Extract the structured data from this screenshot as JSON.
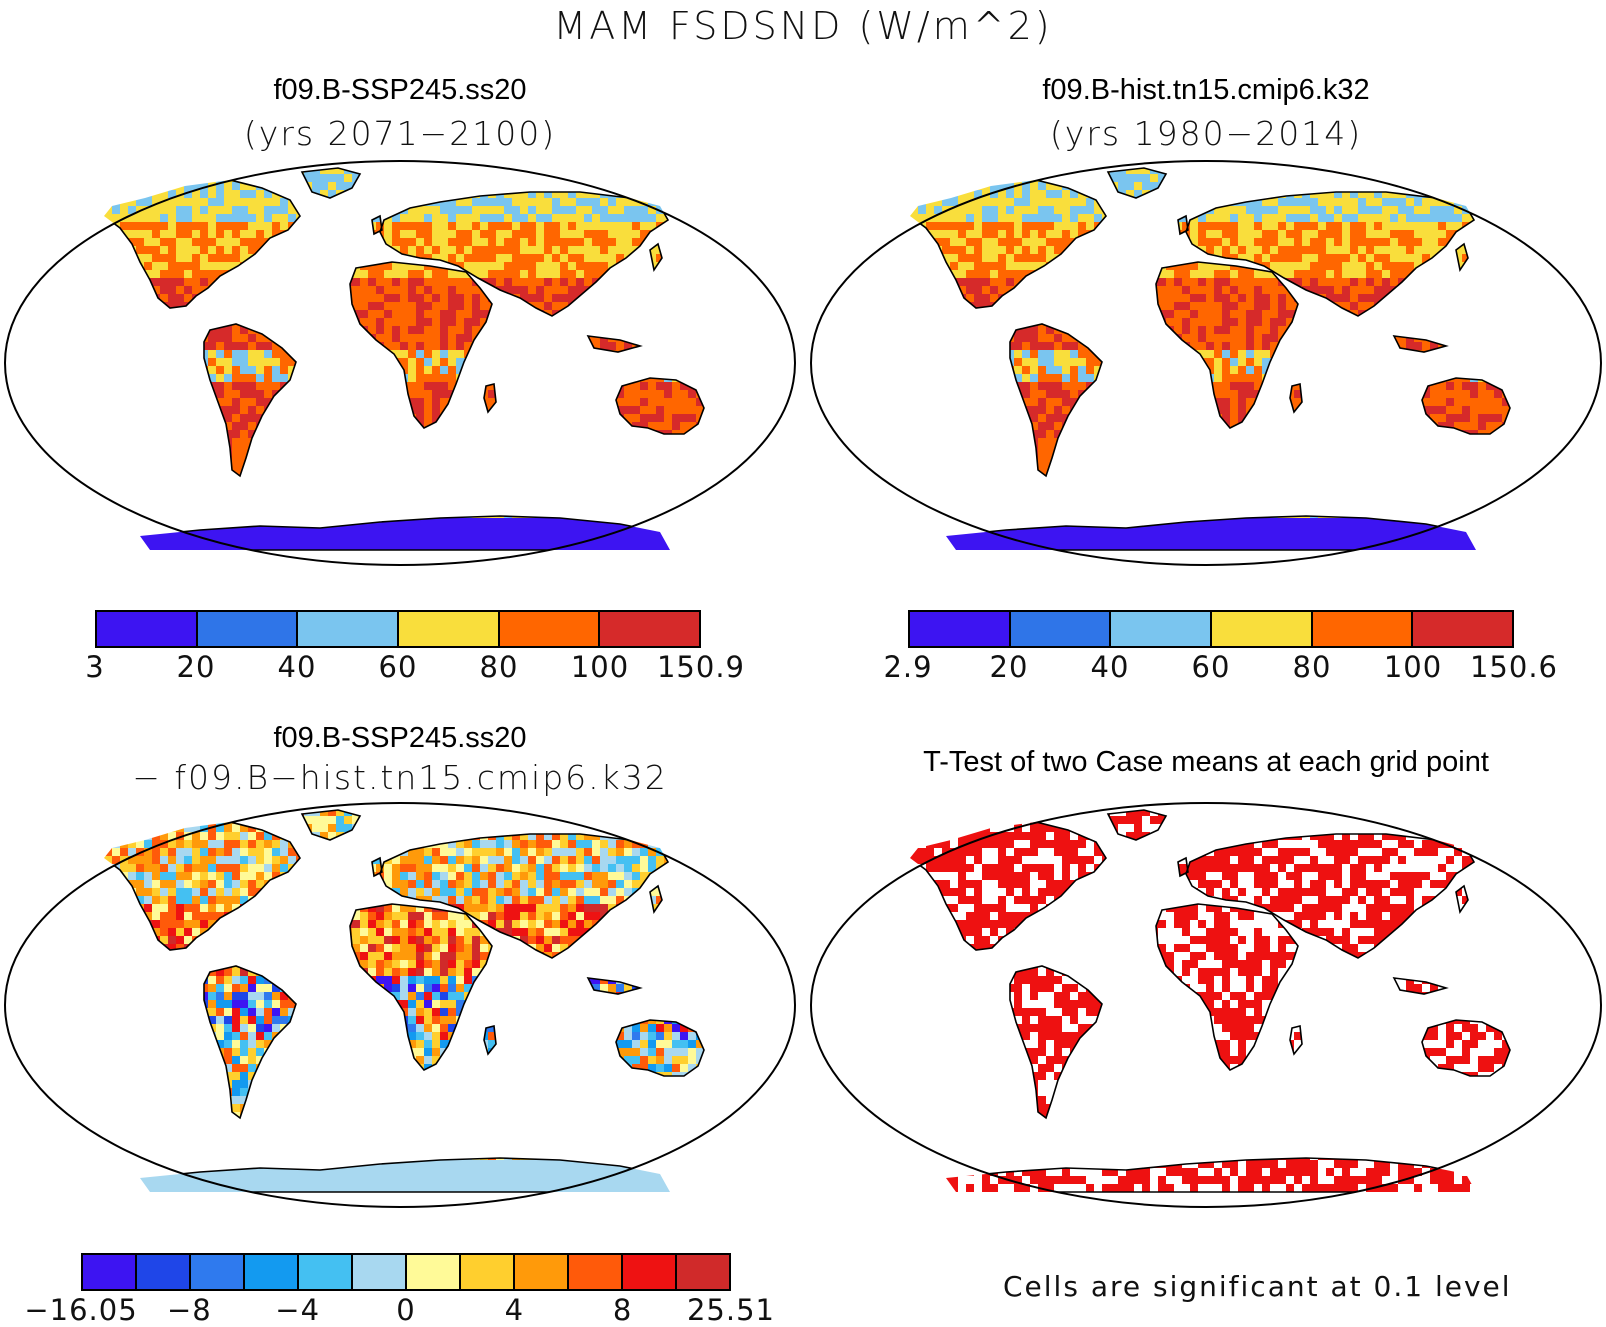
{
  "figure_title": "MAM FSDSND (W/m^2)",
  "panels": {
    "top_left": {
      "title": "f09.B-SSP245.ss20",
      "subtitle": "(yrs 2071−2100)"
    },
    "top_right": {
      "title": "f09.B-hist.tn15.cmip6.k32",
      "subtitle": "(yrs 1980−2014)"
    },
    "bottom_left": {
      "title": "f09.B-SSP245.ss20",
      "subtitle": "− f09.B−hist.tn15.cmip6.k32"
    },
    "bottom_right": {
      "title": "T-Test of two Case means at each grid point",
      "footnote": "Cells are significant at 0.1 level"
    }
  },
  "colorbars": {
    "top_left": {
      "colors": [
        "#3d14f2",
        "#2f75e8",
        "#7ac5ef",
        "#f9de3c",
        "#ff6600",
        "#d62a2a"
      ],
      "labels": [
        "3",
        "20",
        "40",
        "60",
        "80",
        "100",
        "150.9"
      ]
    },
    "top_right": {
      "colors": [
        "#3d14f2",
        "#2f75e8",
        "#7ac5ef",
        "#f9de3c",
        "#ff6600",
        "#d62a2a"
      ],
      "labels": [
        "2.9",
        "20",
        "40",
        "60",
        "80",
        "100",
        "150.6"
      ]
    },
    "bottom_left": {
      "colors": [
        "#3d14f2",
        "#1f46e8",
        "#2f7aee",
        "#139af0",
        "#44c0f2",
        "#a8d8f0",
        "#fffa98",
        "#ffcf2e",
        "#ff9a0a",
        "#ff5a0a",
        "#ee1212",
        "#d02a2a"
      ],
      "labels": [
        "−16.05",
        "−8",
        "−4",
        "0",
        "4",
        "8",
        "25.51"
      ]
    }
  },
  "map_colors": {
    "land_background": "#ffffff",
    "significance_fill": "#ee1111",
    "outline": "#000000"
  }
}
